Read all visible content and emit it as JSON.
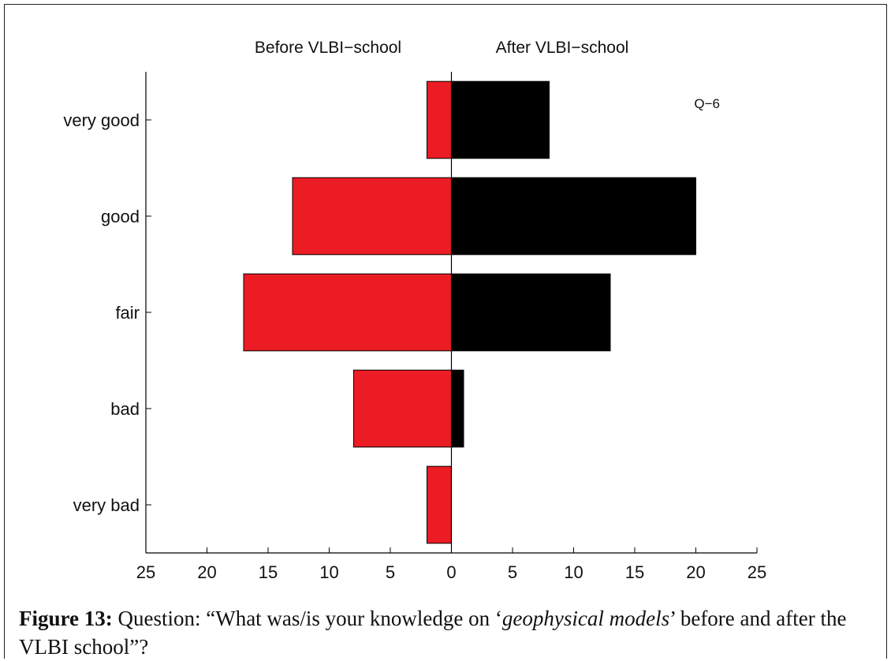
{
  "chart_data": {
    "type": "bar",
    "orientation": "horizontal-butterfly",
    "categories": [
      "very good",
      "good",
      "fair",
      "bad",
      "very bad"
    ],
    "series": [
      {
        "name": "Before VLBI−school",
        "values": [
          2,
          13,
          17,
          8,
          2
        ],
        "color": "#ec1c24",
        "side": "left"
      },
      {
        "name": "After VLBI−school",
        "values": [
          8,
          20,
          13,
          1,
          0
        ],
        "color": "#000000",
        "side": "right"
      }
    ],
    "xlim": [
      -25,
      25
    ],
    "x_ticks": [
      -25,
      -20,
      -15,
      -10,
      -5,
      0,
      5,
      10,
      15,
      20,
      25
    ],
    "x_tick_labels": [
      "25",
      "20",
      "15",
      "10",
      "5",
      "0",
      "5",
      "10",
      "15",
      "20",
      "25"
    ],
    "annotation": "Q−6",
    "grid": false
  },
  "caption": {
    "label": "Figure 13:",
    "text_before": " Question: “What was/is your knowledge on ‘",
    "emphasis": "geophysical models",
    "text_after": "’ before and after the VLBI school”?"
  }
}
